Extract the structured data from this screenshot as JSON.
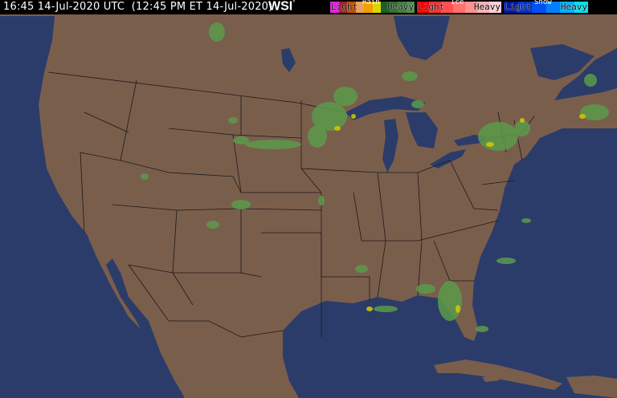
{
  "header": {
    "timestamp": "16:45 14-Jul-2020 UTC  (12:45 PM ET 14-Jul-2020)",
    "logo": "WSI",
    "logo_mark": "°"
  },
  "legend": [
    {
      "title": "Rain",
      "light": "Light",
      "heavy": "Heavy",
      "colors": [
        "#4f8f4f",
        "#3f7f3f",
        "#2f6f2f",
        "#1f5f1f",
        "#d8d800",
        "#f0a000",
        "#e8a060",
        "#c05000",
        "#a02020",
        "#e020e0"
      ]
    },
    {
      "title": "Ice",
      "light": "Light",
      "heavy": "Heavy",
      "colors": [
        "#ffd0d8",
        "#ffb0b8",
        "#ff9090",
        "#ff7070",
        "#ff5050",
        "#ff3030",
        "#ff0000"
      ]
    },
    {
      "title": "Snow",
      "light": "Light",
      "heavy": "Heavy",
      "colors": [
        "#00e0f0",
        "#00b0ff",
        "#0080ff",
        "#0050f0",
        "#0030d0",
        "#0018a0"
      ]
    }
  ],
  "map": {
    "ocean_color": "#2b3c6a",
    "land_color": "#7a5e4c",
    "border_color": "#1a1a1a",
    "radar_light_color": "#5a9a4a",
    "radar_moderate_color": "#d8c800"
  }
}
